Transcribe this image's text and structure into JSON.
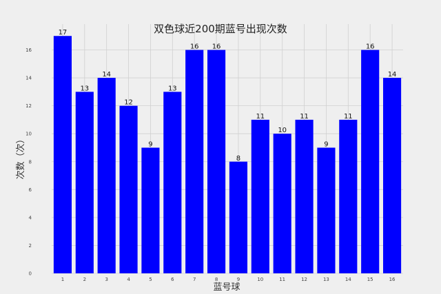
{
  "chart_data": {
    "type": "bar",
    "title": "双色球近200期蓝号出现次数",
    "xlabel": "蓝号球",
    "ylabel": "次数（次）",
    "categories": [
      "1",
      "2",
      "3",
      "4",
      "5",
      "6",
      "7",
      "8",
      "9",
      "10",
      "11",
      "12",
      "13",
      "14",
      "15",
      "16"
    ],
    "values": [
      17,
      13,
      14,
      12,
      9,
      13,
      16,
      16,
      8,
      11,
      10,
      11,
      9,
      11,
      16,
      14
    ],
    "y_ticks": [
      0,
      2,
      4,
      6,
      8,
      10,
      12,
      14,
      16
    ],
    "ylim": [
      0,
      17.85
    ],
    "bar_color": "#0000ff",
    "background_color": "#efefef",
    "grid": true,
    "data_labels": true
  }
}
